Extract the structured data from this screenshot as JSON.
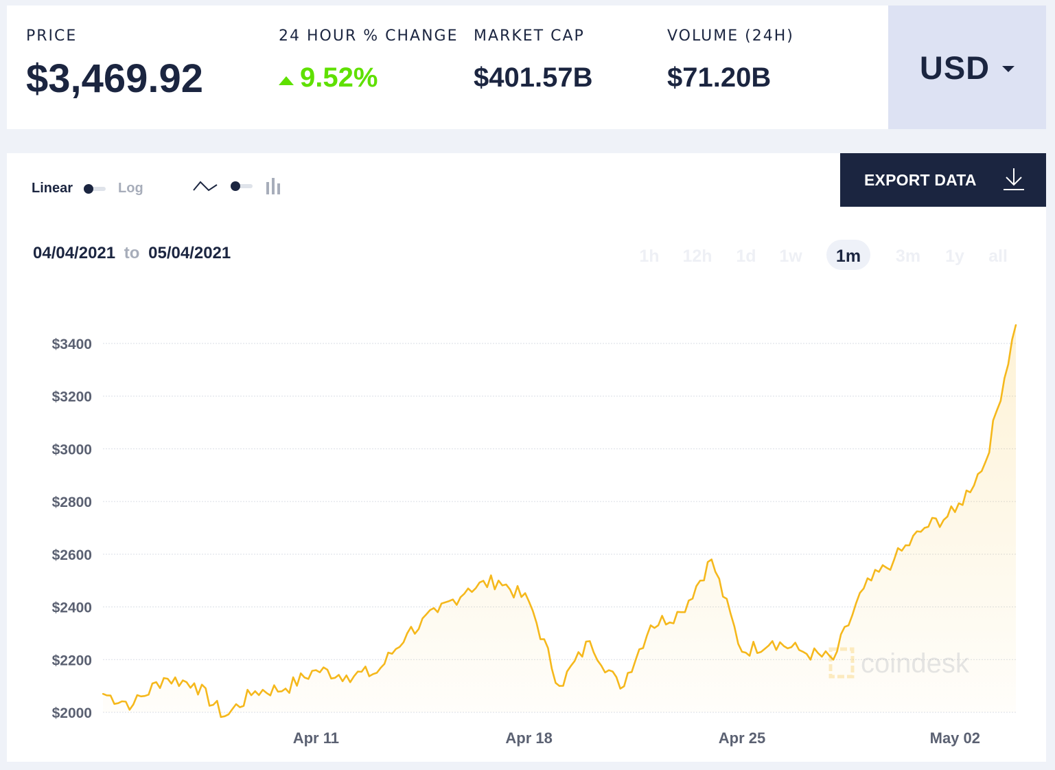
{
  "stats": {
    "price": {
      "label": "PRICE",
      "value": "$3,469.92"
    },
    "change": {
      "label": "24 HOUR % CHANGE",
      "value": "9.52%"
    },
    "market_cap": {
      "label": "MARKET CAP",
      "value": "$401.57B"
    },
    "volume": {
      "label": "VOLUME (24H)",
      "value": "$71.20B"
    }
  },
  "currency": {
    "label": "USD"
  },
  "controls": {
    "linear_label": "Linear",
    "log_label": "Log",
    "export_label": "EXPORT DATA",
    "date_from": "04/04/2021",
    "date_to_word": "to",
    "date_to": "05/04/2021",
    "periods": [
      "1h",
      "12h",
      "1d",
      "1w",
      "1m",
      "3m",
      "1y",
      "all"
    ],
    "active_period": "1m"
  },
  "watermark": "coindesk",
  "colors": {
    "line": "#f5b81c",
    "up": "#5fe000",
    "navy": "#1b2540"
  },
  "chart_data": {
    "type": "area",
    "title": "",
    "xlabel": "",
    "ylabel": "",
    "x_ticks": [
      "Apr 11",
      "Apr 18",
      "Apr 25",
      "May 02"
    ],
    "y_ticks": [
      "$2000",
      "$2200",
      "$2400",
      "$2600",
      "$2800",
      "$3000",
      "$3200",
      "$3400"
    ],
    "ylim": [
      2000,
      3400
    ],
    "grid": true,
    "series": [
      {
        "x": [
          "2021-04-04",
          "2021-04-05",
          "2021-04-06",
          "2021-04-07",
          "2021-04-08",
          "2021-04-09",
          "2021-04-10",
          "2021-04-11",
          "2021-04-12",
          "2021-04-13",
          "2021-04-14",
          "2021-04-15",
          "2021-04-16",
          "2021-04-17",
          "2021-04-18",
          "2021-04-19",
          "2021-04-20",
          "2021-04-21",
          "2021-04-22",
          "2021-04-23",
          "2021-04-24",
          "2021-04-25",
          "2021-04-26",
          "2021-04-27",
          "2021-04-28",
          "2021-04-29",
          "2021-04-30",
          "2021-05-01",
          "2021-05-02",
          "2021-05-03",
          "2021-05-04"
        ],
        "values": [
          2070,
          2030,
          2130,
          2110,
          1985,
          2080,
          2090,
          2160,
          2140,
          2150,
          2300,
          2380,
          2470,
          2500,
          2420,
          2100,
          2270,
          2090,
          2330,
          2380,
          2580,
          2230,
          2270,
          2230,
          2200,
          2470,
          2580,
          2700,
          2760,
          2950,
          3470
        ]
      }
    ]
  }
}
